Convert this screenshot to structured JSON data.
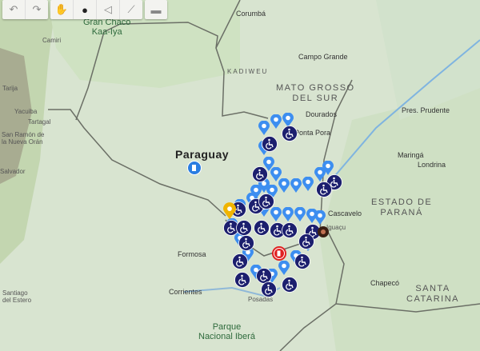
{
  "toolbar": {
    "groups": [
      [
        {
          "icon": "undo-icon",
          "glyph": "↶"
        },
        {
          "icon": "redo-icon",
          "glyph": "↷"
        }
      ],
      [
        {
          "icon": "hand-pan-icon",
          "glyph": "✋"
        },
        {
          "icon": "add-marker-icon",
          "glyph": "●"
        },
        {
          "icon": "draw-polygon-icon",
          "glyph": "◁"
        },
        {
          "icon": "draw-line-icon",
          "glyph": "⟋"
        }
      ],
      [
        {
          "icon": "measure-ruler-icon",
          "glyph": "▬"
        }
      ]
    ]
  },
  "labels": {
    "corumba": "Corumbá",
    "gran_chaco": "Gran Chaco",
    "kaa_iya": "Kaa-Iya",
    "camiri": "Camiri",
    "campo_grande": "Campo Grande",
    "kadiweu": "KADIWEU",
    "mato_grosso": "MATO GROSSO",
    "do_sul": "DEL SUR",
    "dourados": "Dourados",
    "ponta_pora": "Ponta Pora",
    "pres_prudente": "Pres. Prudente",
    "maringa": "Maringá",
    "londrina": "Londrina",
    "paraguay": "Paraguay",
    "estado_de": "ESTADO DE",
    "parana": "PARANÁ",
    "cascavel": "Cascavelo",
    "iguacu": "Iguaçu",
    "formosa": "Formosa",
    "corrientes": "Corrientes",
    "posadas": "Posadas",
    "chapeco": "Chapecó",
    "santa": "SANTA",
    "catarina": "CATARINA",
    "parque": "Parque",
    "nacional_ibera": "Nacional Iberá",
    "tarija": "Tarija",
    "yacuiba": "Yacuiba",
    "tartagal": "Tartagal",
    "san_ramon": "San Ramón de",
    "nueva_oran": "la Nueva Orán",
    "santiago": "Santiago",
    "del_estero": "del Estero",
    "salvador": "Salvador"
  },
  "markers": {
    "blue_pin_color": "#3d8ef0",
    "wheelchair_color": "#1c1f6e",
    "fuel_blue_color": "#2a7de1",
    "fuel_red_color": "#e02020",
    "yellow_pin_color": "#f0b400",
    "wheelchair_icon": "accessible-icon",
    "fuel_icon": "gas-station-icon"
  }
}
